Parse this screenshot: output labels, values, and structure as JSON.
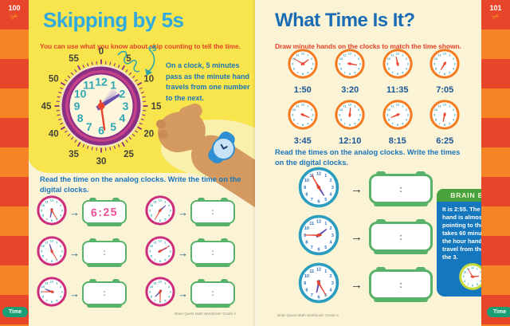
{
  "icons": {
    "scissors": "✂",
    "arrow": "→"
  },
  "digital_colon": ":",
  "page_left": {
    "page_number": "100",
    "tab_label": "Time",
    "title": "Skipping by 5s",
    "subtitle": "You can use what you know about skip counting to tell the time.",
    "big_clock": {
      "minute_labels": [
        "0",
        "5",
        "10",
        "15",
        "20",
        "25",
        "30",
        "35",
        "40",
        "45",
        "50",
        "55"
      ],
      "hour_numbers": [
        "12",
        "1",
        "2",
        "3",
        "4",
        "5",
        "6",
        "7",
        "8",
        "9",
        "10",
        "11"
      ],
      "skip_label": "+5"
    },
    "note": "On a clock, 5 minutes pass as the minute hand travels from one number to the next.",
    "exercise_heading": "Read the time on the analog clocks. Write the time on the digital clocks.",
    "problems": [
      {
        "analog_time": "6:25",
        "written_answer": "6:25"
      },
      {
        "analog_time": "1:35",
        "written_answer": ""
      },
      {
        "analog_time": "11:25",
        "written_answer": ""
      },
      {
        "analog_time": "2:10",
        "written_answer": ""
      },
      {
        "analog_time": "9:45",
        "written_answer": ""
      },
      {
        "analog_time": "7:30",
        "written_answer": ""
      }
    ],
    "footer": "Brain Quest Math Workbook: Grade 2"
  },
  "page_right": {
    "page_number": "101",
    "tab_label": "Time",
    "title": "What Time Is It?",
    "subtitle": "Draw minute hands on the clocks to match the time shown.",
    "draw_clocks": [
      {
        "label": "1:50",
        "minute_hand_drawn": true
      },
      {
        "label": "3:20",
        "minute_hand_drawn": false
      },
      {
        "label": "11:35",
        "minute_hand_drawn": false
      },
      {
        "label": "7:05",
        "minute_hand_drawn": false
      },
      {
        "label": "3:45",
        "minute_hand_drawn": false
      },
      {
        "label": "12:10",
        "minute_hand_drawn": false
      },
      {
        "label": "8:15",
        "minute_hand_drawn": false
      },
      {
        "label": "6:25",
        "minute_hand_drawn": false
      }
    ],
    "exercise_heading": "Read the times on the analog clocks. Write the times on the digital clocks.",
    "problems": [
      {
        "analog_time": "4:55"
      },
      {
        "analog_time": "1:45"
      },
      {
        "analog_time": "6:25"
      }
    ],
    "brain_box": {
      "title": "BRAIN BOX",
      "text": "It is 2:55. The hour hand is almost pointing to the 3. It takes 60 minutes for the hour hand to travel from the 2 to the 3.",
      "clock_time": "2:55"
    },
    "footer": "Brain Quest Math Workbook: Grade 2"
  },
  "colors": {
    "stripe_red": "#E8462B",
    "stripe_orange": "#F58426",
    "page_yellow": "#F8E54D",
    "page_cream": "#FBF3D6",
    "title_light_blue": "#2FA9DE",
    "title_dark_blue": "#1A6CB5",
    "subtitle_red": "#E2432A",
    "body_blue": "#1B76B9",
    "teal": "#2FA7B5",
    "clock_pink_ring": "#CC2E7B",
    "clock_orange_ring": "#F47B20",
    "clock_blue_ring": "#2D9DBF",
    "clock_blue_numbers": "#2A6FB8",
    "clock_purple": "#8A2E86",
    "clock_magenta": "#C54289",
    "hand_purple": "#6B4FAE",
    "hand_purple_light": "#A894CF",
    "hand_red": "#E8432C",
    "digital_green": "#58B269",
    "answer_pink": "#EE4D97",
    "brainbox_blue": "#1577BE",
    "brainbox_green": "#4AA23E",
    "brainbox_clock_ring": "#C6D93B",
    "time_tab_green": "#1A9E74"
  }
}
